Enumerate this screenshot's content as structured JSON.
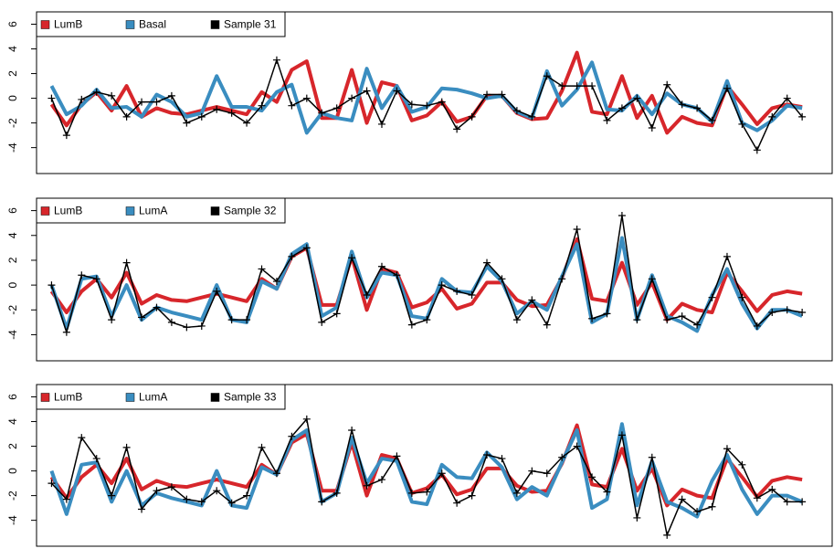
{
  "chart_data": [
    {
      "type": "line",
      "legend": "topleft",
      "x": [
        1,
        2,
        3,
        4,
        5,
        6,
        7,
        8,
        9,
        10,
        11,
        12,
        13,
        14,
        15,
        16,
        17,
        18,
        19,
        20,
        21,
        22,
        23,
        24,
        25,
        26,
        27,
        28,
        29,
        30,
        31,
        32,
        33,
        34,
        35,
        36,
        37,
        38,
        39,
        40,
        41,
        42,
        43,
        44,
        45,
        46,
        47,
        48,
        49,
        50,
        51
      ],
      "xlim": [
        0,
        53
      ],
      "ylim": [
        -6.1,
        7.0
      ],
      "yticks": [
        -4,
        -2,
        0,
        2,
        4,
        6
      ],
      "series": [
        {
          "name": "LumB",
          "color": "#d7262b",
          "values": [
            -0.5,
            -2.2,
            -0.5,
            0.5,
            -1.0,
            1.0,
            -1.5,
            -0.8,
            -1.2,
            -1.3,
            -1.0,
            -0.7,
            -1.0,
            -1.3,
            0.5,
            -0.3,
            2.3,
            3.0,
            -1.6,
            -1.6,
            2.3,
            -2.0,
            1.3,
            1.0,
            -1.8,
            -1.4,
            -0.3,
            -1.9,
            -1.5,
            0.2,
            0.2,
            -1.2,
            -1.7,
            -1.6,
            0.6,
            3.7,
            -1.1,
            -1.3,
            1.8,
            -1.6,
            0.2,
            -2.8,
            -1.5,
            -2.0,
            -2.2,
            1.0,
            -0.5,
            -2.1,
            -0.8,
            -0.5,
            -0.7
          ]
        },
        {
          "name": "Basal",
          "color": "#3a8dc0",
          "values": [
            1.0,
            -1.3,
            -0.6,
            0.7,
            -0.8,
            -0.7,
            -1.5,
            0.3,
            -0.3,
            -1.5,
            -1.2,
            1.8,
            -0.7,
            -0.7,
            -1.0,
            0.5,
            1.1,
            -2.8,
            -1.2,
            -1.6,
            -1.8,
            2.4,
            -0.8,
            1.0,
            -1.1,
            -0.7,
            0.8,
            0.7,
            0.4,
            0.0,
            0.2,
            -1.1,
            -1.6,
            2.2,
            -0.6,
            0.7,
            2.9,
            -0.9,
            -1.0,
            0.2,
            -1.3,
            0.4,
            -0.5,
            -0.8,
            -1.9,
            1.4,
            -2.0,
            -2.6,
            -1.8,
            -0.6,
            -0.8
          ]
        },
        {
          "name": "Sample 31",
          "color": "#000000",
          "marker": "plus",
          "values": [
            0.0,
            -3.0,
            -0.1,
            0.5,
            0.2,
            -1.5,
            -0.3,
            -0.3,
            0.2,
            -2.0,
            -1.5,
            -0.9,
            -1.2,
            -2.0,
            -0.6,
            3.1,
            -0.6,
            0.0,
            -1.2,
            -0.8,
            0.0,
            0.6,
            -2.1,
            0.6,
            -0.5,
            -0.6,
            -0.3,
            -2.5,
            -1.5,
            0.3,
            0.3,
            -1.0,
            -1.5,
            1.8,
            1.0,
            1.0,
            1.0,
            -1.8,
            -0.8,
            0.0,
            -2.4,
            1.1,
            -0.5,
            -0.8,
            -1.8,
            0.8,
            -2.1,
            -4.2,
            -1.5,
            0.0,
            -1.5
          ]
        }
      ]
    },
    {
      "type": "line",
      "legend": "topleft",
      "x": [
        1,
        2,
        3,
        4,
        5,
        6,
        7,
        8,
        9,
        10,
        11,
        12,
        13,
        14,
        15,
        16,
        17,
        18,
        19,
        20,
        21,
        22,
        23,
        24,
        25,
        26,
        27,
        28,
        29,
        30,
        31,
        32,
        33,
        34,
        35,
        36,
        37,
        38,
        39,
        40,
        41,
        42,
        43,
        44,
        45,
        46,
        47,
        48,
        49,
        50,
        51
      ],
      "xlim": [
        0,
        53
      ],
      "ylim": [
        -6.1,
        7.0
      ],
      "yticks": [
        -4,
        -2,
        0,
        2,
        4,
        6
      ],
      "series": [
        {
          "name": "LumB",
          "color": "#d7262b",
          "values": [
            -0.5,
            -2.2,
            -0.5,
            0.5,
            -1.0,
            1.0,
            -1.5,
            -0.8,
            -1.2,
            -1.3,
            -1.0,
            -0.7,
            -1.0,
            -1.3,
            0.5,
            -0.3,
            2.3,
            3.0,
            -1.6,
            -1.6,
            2.3,
            -2.0,
            1.3,
            1.0,
            -1.8,
            -1.4,
            -0.3,
            -1.9,
            -1.5,
            0.2,
            0.2,
            -1.2,
            -1.7,
            -1.6,
            0.6,
            3.7,
            -1.1,
            -1.3,
            1.8,
            -1.6,
            0.2,
            -2.8,
            -1.5,
            -2.0,
            -2.2,
            1.0,
            -0.5,
            -2.1,
            -0.8,
            -0.5,
            -0.7
          ]
        },
        {
          "name": "LumA",
          "color": "#3a8dc0",
          "values": [
            0.0,
            -3.5,
            0.5,
            0.7,
            -2.5,
            0.0,
            -2.8,
            -1.8,
            -2.2,
            -2.5,
            -2.8,
            0.0,
            -2.8,
            -3.0,
            0.3,
            -0.3,
            2.5,
            3.3,
            -2.5,
            -1.8,
            2.7,
            -1.0,
            1.0,
            0.8,
            -2.5,
            -2.7,
            0.5,
            -0.5,
            -0.6,
            1.5,
            0.3,
            -2.3,
            -1.3,
            -2.0,
            0.7,
            3.3,
            -3.0,
            -2.3,
            3.8,
            -2.8,
            0.8,
            -2.5,
            -3.0,
            -3.7,
            -0.8,
            1.3,
            -1.5,
            -3.5,
            -2.0,
            -2.0,
            -2.5
          ]
        },
        {
          "name": "Sample 32",
          "color": "#000000",
          "marker": "plus",
          "values": [
            0.0,
            -3.8,
            0.8,
            0.5,
            -2.8,
            1.8,
            -2.6,
            -1.8,
            -3.0,
            -3.4,
            -3.3,
            -0.5,
            -2.8,
            -2.8,
            1.3,
            0.3,
            2.3,
            3.0,
            -3.0,
            -2.3,
            2.2,
            -0.8,
            1.5,
            0.8,
            -3.2,
            -2.8,
            0.0,
            -0.5,
            -0.8,
            1.8,
            0.5,
            -2.8,
            -1.2,
            -3.2,
            0.5,
            4.5,
            -2.7,
            -2.3,
            5.6,
            -2.8,
            0.5,
            -2.8,
            -2.5,
            -3.2,
            -1.0,
            2.3,
            -1.0,
            -3.3,
            -2.2,
            -2.0,
            -2.2
          ]
        }
      ]
    },
    {
      "type": "line",
      "legend": "topleft",
      "x": [
        1,
        2,
        3,
        4,
        5,
        6,
        7,
        8,
        9,
        10,
        11,
        12,
        13,
        14,
        15,
        16,
        17,
        18,
        19,
        20,
        21,
        22,
        23,
        24,
        25,
        26,
        27,
        28,
        29,
        30,
        31,
        32,
        33,
        34,
        35,
        36,
        37,
        38,
        39,
        40,
        41,
        42,
        43,
        44,
        45,
        46,
        47,
        48,
        49,
        50,
        51
      ],
      "xlim": [
        0,
        53
      ],
      "ylim": [
        -6.1,
        7.0
      ],
      "yticks": [
        -4,
        -2,
        0,
        2,
        4,
        6
      ],
      "series": [
        {
          "name": "LumB",
          "color": "#d7262b",
          "values": [
            -0.5,
            -2.2,
            -0.5,
            0.5,
            -1.0,
            1.0,
            -1.5,
            -0.8,
            -1.2,
            -1.3,
            -1.0,
            -0.7,
            -1.0,
            -1.3,
            0.5,
            -0.3,
            2.3,
            3.0,
            -1.6,
            -1.6,
            2.3,
            -2.0,
            1.3,
            1.0,
            -1.8,
            -1.4,
            -0.3,
            -1.9,
            -1.5,
            0.2,
            0.2,
            -1.2,
            -1.7,
            -1.6,
            0.6,
            3.7,
            -1.1,
            -1.3,
            1.8,
            -1.6,
            0.2,
            -2.8,
            -1.5,
            -2.0,
            -2.2,
            1.0,
            -0.5,
            -2.1,
            -0.8,
            -0.5,
            -0.7
          ]
        },
        {
          "name": "LumA",
          "color": "#3a8dc0",
          "values": [
            0.0,
            -3.5,
            0.5,
            0.7,
            -2.5,
            0.0,
            -2.8,
            -1.8,
            -2.2,
            -2.5,
            -2.8,
            0.0,
            -2.8,
            -3.0,
            0.3,
            -0.3,
            2.5,
            3.3,
            -2.5,
            -1.8,
            2.7,
            -1.0,
            1.0,
            0.8,
            -2.5,
            -2.7,
            0.5,
            -0.5,
            -0.6,
            1.5,
            0.3,
            -2.3,
            -1.3,
            -2.0,
            0.7,
            3.3,
            -3.0,
            -2.3,
            3.8,
            -2.8,
            0.8,
            -2.5,
            -3.0,
            -3.7,
            -0.8,
            1.3,
            -1.5,
            -3.5,
            -2.0,
            -2.0,
            -2.5
          ]
        },
        {
          "name": "Sample 33",
          "color": "#000000",
          "marker": "plus",
          "values": [
            -1.0,
            -2.3,
            2.7,
            1.0,
            -2.0,
            1.9,
            -3.1,
            -1.6,
            -1.3,
            -2.3,
            -2.5,
            -1.6,
            -2.6,
            -2.0,
            1.9,
            -0.2,
            2.8,
            4.2,
            -2.5,
            -1.8,
            3.3,
            -1.2,
            -0.7,
            1.2,
            -1.8,
            -1.7,
            -0.2,
            -2.6,
            -2.0,
            1.3,
            1.0,
            -1.8,
            0.0,
            -0.2,
            1.1,
            2.0,
            -0.5,
            -1.7,
            2.9,
            -3.8,
            1.1,
            -5.2,
            -2.3,
            -3.3,
            -2.9,
            1.8,
            0.5,
            -2.2,
            -1.5,
            -2.5,
            -2.5
          ]
        }
      ]
    }
  ]
}
